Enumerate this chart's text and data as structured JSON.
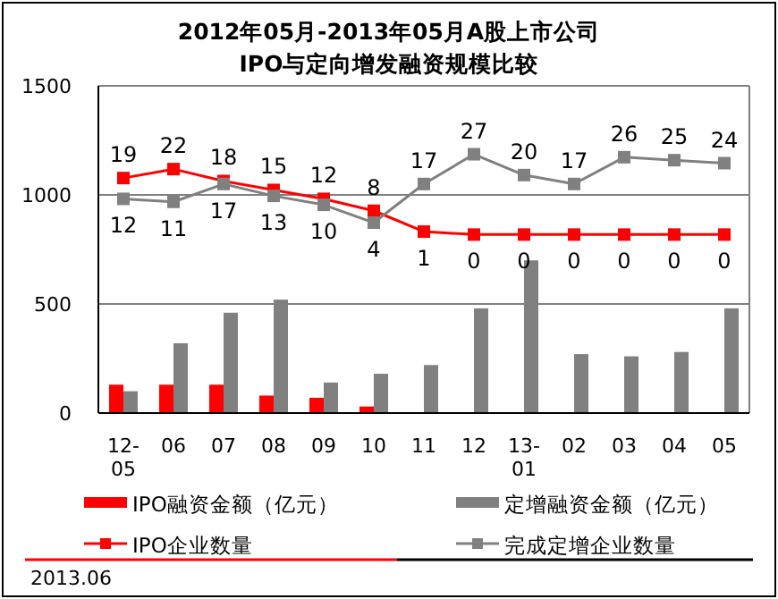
{
  "chart_data": {
    "type": "bar",
    "title": "2012年05月-2013年05月A股上市公司",
    "subtitle": "IPO与定向增发融资规模比较",
    "categories": [
      "12-05",
      "06",
      "07",
      "08",
      "09",
      "10",
      "11",
      "12",
      "13-01",
      "02",
      "03",
      "04",
      "05"
    ],
    "series": [
      {
        "name": "IPO融资金额（亿元）",
        "color": "#ff0000",
        "values": [
          130,
          130,
          130,
          80,
          70,
          30,
          0,
          0,
          0,
          0,
          0,
          0,
          0
        ]
      },
      {
        "name": "定增融资金额（亿元）",
        "color": "#808080",
        "values": [
          100,
          320,
          460,
          520,
          140,
          180,
          220,
          480,
          700,
          270,
          260,
          280,
          480
        ]
      },
      {
        "name": "IPO企业数量",
        "type": "line",
        "axis": "y2",
        "marker": "square",
        "color": "#ff0000",
        "values": [
          19,
          22,
          18,
          15,
          12,
          8,
          1,
          0,
          0,
          0,
          0,
          0,
          0
        ],
        "value_labels": [
          "19",
          "22",
          "18",
          "15",
          "12",
          "8",
          "1",
          "0",
          "0",
          "0",
          "0",
          "0",
          "0"
        ]
      },
      {
        "name": "完成定增企业数量",
        "type": "line",
        "axis": "y2",
        "marker": "square",
        "color": "#808080",
        "values": [
          12,
          11,
          17,
          13,
          10,
          4,
          17,
          27,
          20,
          17,
          26,
          25,
          24
        ],
        "value_labels": [
          "12",
          "11",
          "17",
          "13",
          "10",
          "4",
          "17",
          "27",
          "20",
          "17",
          "26",
          "25",
          "24"
        ]
      }
    ],
    "ylim": [
      0,
      1500
    ],
    "yticks": [
      0,
      500,
      1000,
      1500
    ],
    "y2lim": [
      -60,
      50
    ],
    "grid": "y",
    "legend": "bottom",
    "annotations": [
      "2013.06"
    ]
  }
}
